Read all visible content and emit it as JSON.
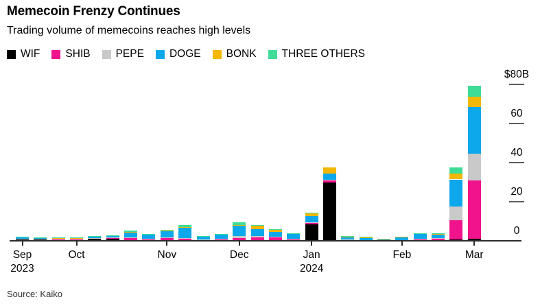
{
  "header": {
    "title": "Memecoin Frenzy Continues",
    "subtitle": "Trading volume of memecoins reaches high levels"
  },
  "source": {
    "label": "Source: Kaiko"
  },
  "colors": {
    "wif": "#000000",
    "shib": "#F0138C",
    "pepe": "#C9C9C9",
    "doge": "#0DA8EC",
    "bonk": "#F3B705",
    "three_others": "#3EDC96",
    "axis": "#2b2b2b",
    "tick_dash": "#5c5c5c"
  },
  "chart_data": {
    "type": "bar",
    "stacked": true,
    "unit": "$ billions",
    "title": "Memecoin Frenzy Continues",
    "subtitle": "Trading volume of memecoins reaches high levels",
    "ylim": [
      0,
      80
    ],
    "grid": false,
    "legend_position": "top",
    "y_axis": {
      "side": "right",
      "ticks": [
        {
          "value": 80,
          "label": "$80B"
        },
        {
          "value": 60,
          "label": "60"
        },
        {
          "value": 40,
          "label": "40"
        },
        {
          "value": 20,
          "label": "20"
        },
        {
          "value": 0,
          "label": "0"
        }
      ]
    },
    "categories": [
      "Sep w1",
      "Sep w2",
      "Sep w3",
      "Oct w1",
      "Oct w2",
      "Oct w3",
      "Oct w4",
      "Oct w5",
      "Nov w1",
      "Nov w2",
      "Nov w3",
      "Nov w4",
      "Dec w1",
      "Dec w2",
      "Dec w3",
      "Dec w4",
      "Jan w1",
      "Jan w2",
      "Jan w3",
      "Jan w4",
      "Jan w5",
      "Feb w1",
      "Feb w2",
      "Feb w3",
      "Feb w4",
      "Mar w1"
    ],
    "month_ticks": [
      {
        "index": 0,
        "label": "Sep",
        "year": "2023"
      },
      {
        "index": 3,
        "label": "Oct"
      },
      {
        "index": 8,
        "label": "Nov"
      },
      {
        "index": 12,
        "label": "Dec"
      },
      {
        "index": 16,
        "label": "Jan",
        "year": "2024"
      },
      {
        "index": 21,
        "label": "Feb"
      },
      {
        "index": 25,
        "label": "Mar"
      }
    ],
    "series": [
      {
        "name": "WIF",
        "color": "#000000",
        "values": [
          0.9,
          0.8,
          0.6,
          0.6,
          1.1,
          1.2,
          0.3,
          0.3,
          0.3,
          0.3,
          0.2,
          0.3,
          0.3,
          0.3,
          0.4,
          0.2,
          8.3,
          29.8,
          0.1,
          0.1,
          0.1,
          0.1,
          0.2,
          0.2,
          0.7,
          1.0
        ]
      },
      {
        "name": "SHIB",
        "color": "#F0138C",
        "values": [
          0.2,
          0.2,
          0.2,
          0.2,
          0.2,
          0.3,
          1.0,
          0.6,
          1.0,
          0.8,
          0.4,
          0.5,
          1.0,
          1.5,
          1.3,
          0.7,
          1.0,
          1.1,
          0.4,
          0.3,
          0.2,
          0.3,
          0.8,
          1.0,
          9.7,
          29.8
        ]
      },
      {
        "name": "PEPE",
        "color": "#C9C9C9",
        "values": [
          0.1,
          0.1,
          0.1,
          0.1,
          0.1,
          0.1,
          0.4,
          0.2,
          0.4,
          0.4,
          0.2,
          0.2,
          1.2,
          0.5,
          0.3,
          0.2,
          0.2,
          0.2,
          0.1,
          0.1,
          0.0,
          0.1,
          0.1,
          0.1,
          7.1,
          13.9
        ]
      },
      {
        "name": "DOGE",
        "color": "#0DA8EC",
        "values": [
          0.7,
          0.6,
          0.5,
          0.5,
          1.0,
          1.1,
          2.7,
          2.2,
          3.2,
          5.4,
          1.6,
          2.4,
          5.3,
          3.7,
          2.7,
          2.3,
          3.1,
          3.2,
          1.3,
          1.3,
          0.8,
          1.3,
          2.3,
          2.0,
          13.9,
          23.7
        ]
      },
      {
        "name": "BONK",
        "color": "#F3B705",
        "values": [
          0.1,
          0.1,
          0.1,
          0.1,
          0.1,
          0.1,
          0.2,
          0.1,
          0.2,
          0.2,
          0.1,
          0.1,
          0.2,
          1.8,
          1.0,
          0.5,
          1.4,
          3.2,
          0.4,
          0.1,
          0.1,
          0.3,
          0.5,
          0.3,
          2.9,
          5.3
        ]
      },
      {
        "name": "THREE OTHERS",
        "color": "#3EDC96",
        "values": [
          0.1,
          0.1,
          0.1,
          0.1,
          0.1,
          0.1,
          0.5,
          0.1,
          0.6,
          1.0,
          0.1,
          0.1,
          1.5,
          0.2,
          0.2,
          0.1,
          0.4,
          0.0,
          0.1,
          0.2,
          0.0,
          0.0,
          0.1,
          0.1,
          3.2,
          5.6
        ]
      }
    ]
  }
}
